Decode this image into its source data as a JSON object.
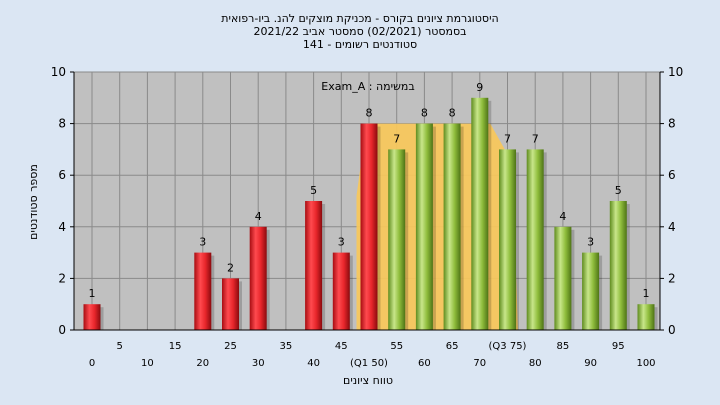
{
  "header": {
    "title_line1": "היסטוגרמת ציונים בקורס - מכניקת מוצקים להנ. ביו-רפואית",
    "title_line2": "בסמסטר (02/2021) סמסטר אביב 2021/22",
    "title_line3": "סטודנטים רשומים - 141"
  },
  "chart_data": {
    "type": "bar",
    "annotation": "במשימה : Exam_A",
    "ylabel": "מספר סטודנטים",
    "xlabel": "טווח ציונים",
    "ylim": [
      0,
      10
    ],
    "yticks": [
      0,
      2,
      4,
      6,
      8,
      10
    ],
    "grid": true,
    "categories": [
      0,
      5,
      10,
      15,
      20,
      25,
      30,
      35,
      40,
      45,
      50,
      55,
      60,
      65,
      70,
      75,
      80,
      85,
      90,
      95,
      100
    ],
    "x_tick_labels": [
      "0",
      "5",
      "10",
      "15",
      "20",
      "25",
      "30",
      "35",
      "40",
      "45",
      "(Q1 50)",
      "55",
      "60",
      "65",
      "70",
      "(Q3 75)",
      "80",
      "85",
      "90",
      "95",
      "100"
    ],
    "values": [
      1,
      0,
      0,
      0,
      3,
      2,
      4,
      0,
      5,
      3,
      8,
      7,
      8,
      8,
      9,
      7,
      7,
      4,
      3,
      5,
      1
    ],
    "bar_colors": [
      "red",
      "red",
      "red",
      "red",
      "red",
      "red",
      "red",
      "red",
      "red",
      "red",
      "red",
      "green",
      "green",
      "green",
      "green",
      "green",
      "green",
      "green",
      "green",
      "green",
      "green"
    ],
    "interquartile_band": {
      "from": 50,
      "to": 75,
      "color": "#f8c85a"
    },
    "colors": {
      "background": "#dbe6f3",
      "plot_area": "#c0c0c0",
      "grid": "#8a8a8a",
      "red_bar": "#e8262b",
      "green_bar": "#8fbd3c",
      "band": "#f8c85a"
    }
  }
}
